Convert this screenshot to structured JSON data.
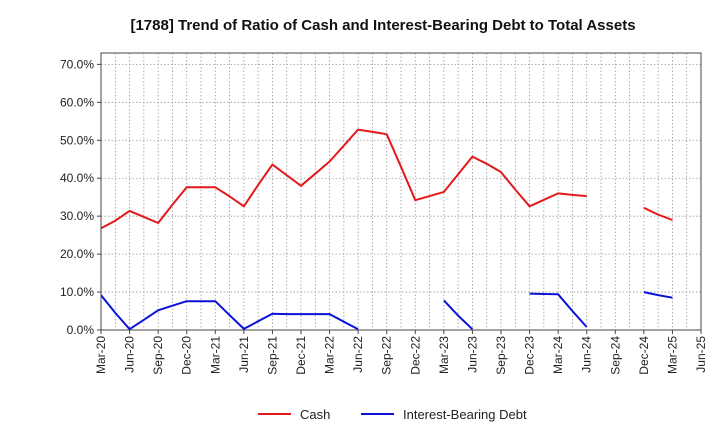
{
  "chart_data": {
    "type": "line",
    "title": "[1788]  Trend of Ratio of Cash and Interest-Bearing Debt to Total Assets",
    "xlabel": "",
    "ylabel": "",
    "ylim": [
      0,
      73
    ],
    "y_ticks": [
      {
        "value": 0,
        "label": "0.0%"
      },
      {
        "value": 10,
        "label": "10.0%"
      },
      {
        "value": 20,
        "label": "20.0%"
      },
      {
        "value": 30,
        "label": "30.0%"
      },
      {
        "value": 40,
        "label": "40.0%"
      },
      {
        "value": 50,
        "label": "50.0%"
      },
      {
        "value": 60,
        "label": "60.0%"
      },
      {
        "value": 70,
        "label": "70.0%"
      }
    ],
    "x_tick_labels": [
      "Mar-20",
      "Jun-20",
      "Sep-20",
      "Dec-20",
      "Mar-21",
      "Jun-21",
      "Sep-21",
      "Dec-21",
      "Mar-22",
      "Jun-22",
      "Sep-22",
      "Dec-22",
      "Mar-23",
      "Jun-23",
      "Sep-23",
      "Dec-23",
      "Mar-24",
      "Jun-24",
      "Sep-24",
      "Dec-24",
      "Mar-25",
      "Jun-25"
    ],
    "grid": true,
    "legend_position": "bottom-center",
    "series": [
      {
        "name": "Cash",
        "color": "#e31a1c",
        "segments": [
          [
            [
              0,
              26.8
            ],
            [
              1,
              28.8
            ],
            [
              2,
              31.4
            ],
            [
              3,
              29.8
            ],
            [
              4,
              28.2
            ],
            [
              5,
              33.0
            ],
            [
              6,
              37.6
            ],
            [
              7,
              37.6
            ],
            [
              8,
              37.6
            ],
            [
              9,
              35.2
            ],
            [
              10,
              32.6
            ],
            [
              11,
              38.2
            ],
            [
              12,
              43.6
            ],
            [
              13,
              40.8
            ],
            [
              14,
              38.0
            ],
            [
              15,
              41.2
            ],
            [
              16,
              44.4
            ],
            [
              17,
              48.6
            ],
            [
              18,
              52.8
            ],
            [
              19,
              52.2
            ],
            [
              20,
              51.6
            ],
            [
              21,
              43.0
            ],
            [
              22,
              34.2
            ],
            [
              23,
              35.3
            ],
            [
              24,
              36.4
            ],
            [
              25,
              41.0
            ],
            [
              26,
              45.7
            ],
            [
              27,
              43.8
            ],
            [
              28,
              41.6
            ],
            [
              29,
              37.0
            ],
            [
              30,
              32.6
            ],
            [
              31,
              34.3
            ],
            [
              32,
              36.0
            ],
            [
              33,
              35.6
            ],
            [
              34,
              35.3
            ]
          ],
          [
            [
              38,
              32.2
            ],
            [
              39,
              30.4
            ],
            [
              40,
              29.0
            ]
          ]
        ]
      },
      {
        "name": "Interest-Bearing Debt",
        "color": "#0a12d9",
        "segments": [
          [
            [
              0,
              9.2
            ],
            [
              1,
              4.5
            ],
            [
              2,
              0.2
            ],
            [
              3,
              2.7
            ],
            [
              4,
              5.2
            ],
            [
              5,
              6.4
            ],
            [
              6,
              7.6
            ],
            [
              7,
              7.6
            ],
            [
              8,
              7.6
            ],
            [
              9,
              3.9
            ],
            [
              10,
              0.3
            ],
            [
              11,
              2.3
            ],
            [
              12,
              4.3
            ],
            [
              13,
              4.2
            ],
            [
              14,
              4.2
            ],
            [
              15,
              4.2
            ],
            [
              16,
              4.2
            ],
            [
              17,
              2.2
            ],
            [
              18,
              0.2
            ]
          ],
          [
            [
              24,
              7.8
            ],
            [
              25,
              3.8
            ],
            [
              26,
              0.2
            ]
          ],
          [
            [
              30,
              9.6
            ],
            [
              31,
              9.5
            ],
            [
              32,
              9.4
            ],
            [
              33,
              5.0
            ],
            [
              34,
              0.8
            ]
          ],
          [
            [
              38,
              10.0
            ],
            [
              39,
              9.2
            ],
            [
              40,
              8.5
            ]
          ]
        ]
      }
    ]
  }
}
